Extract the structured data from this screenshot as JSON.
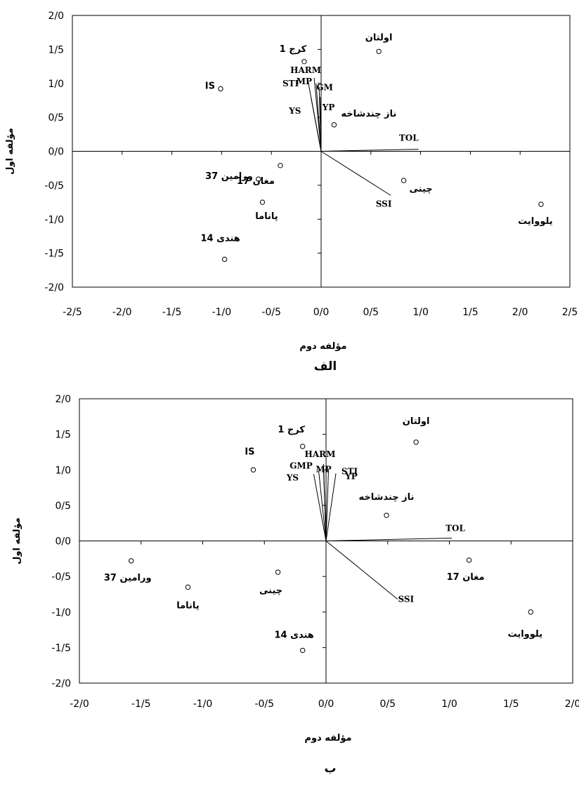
{
  "chart_data": [
    {
      "type": "scatter",
      "caption": "الف",
      "xlabel": "مؤلفه دوم",
      "ylabel": "مؤلفه اول",
      "xlim": [
        -2.5,
        2.5
      ],
      "ylim": [
        -2.0,
        2.0
      ],
      "xticks": [
        "-2/5",
        "-2/0",
        "-1/5",
        "-1/0",
        "-0/5",
        "0/0",
        "0/5",
        "1/0",
        "1/5",
        "2/0",
        "2/5"
      ],
      "yticks": [
        "-2/0",
        "-1/5",
        "-1/0",
        "-0/5",
        "0/0",
        "0/5",
        "1/0",
        "1/5",
        "2/0"
      ],
      "points": [
        {
          "label": "اولتان",
          "x": 0.58,
          "y": 1.47
        },
        {
          "label": "کرج 1",
          "x": -0.17,
          "y": 1.32
        },
        {
          "label": "IS",
          "x": -1.01,
          "y": 0.92
        },
        {
          "label": "ناز چندشاخه",
          "x": 0.13,
          "y": 0.39
        },
        {
          "label": "ورامین 37",
          "x": -0.63,
          "y": -0.41
        },
        {
          "label": "مغان 17",
          "x": -0.41,
          "y": -0.21
        },
        {
          "label": "چینی",
          "x": 0.83,
          "y": -0.43
        },
        {
          "label": "پاناما",
          "x": -0.59,
          "y": -0.75
        },
        {
          "label": "یلووایت",
          "x": 2.21,
          "y": -0.78
        },
        {
          "label": "هندی 14",
          "x": -0.97,
          "y": -1.59
        }
      ],
      "vectors": [
        {
          "label": "HARM",
          "x": -0.07,
          "y": 1.08
        },
        {
          "label": "MP",
          "x": -0.05,
          "y": 1.0
        },
        {
          "label": "GM",
          "x": -0.02,
          "y": 0.95
        },
        {
          "label": "YP",
          "x": -0.01,
          "y": 0.8
        },
        {
          "label": "STI",
          "x": -0.13,
          "y": 1.02
        },
        {
          "label": "YS",
          "x": -0.1,
          "y": 0.78
        },
        {
          "label": "TOL",
          "x": 0.98,
          "y": 0.03
        },
        {
          "label": "SSI",
          "x": 0.7,
          "y": -0.65
        }
      ]
    },
    {
      "type": "scatter",
      "caption": "ب",
      "xlabel": "مؤلفه دوم",
      "ylabel": "مؤلفه اول",
      "xlim": [
        -2.0,
        2.0
      ],
      "ylim": [
        -2.0,
        2.0
      ],
      "xticks": [
        "-2/0",
        "-1/5",
        "-1/0",
        "-0/5",
        "0/0",
        "0/5",
        "1/0",
        "1/5",
        "2/0"
      ],
      "yticks": [
        "-2/0",
        "-1/5",
        "-1/0",
        "-0/5",
        "0/0",
        "0/5",
        "1/0",
        "1/5",
        "2/0"
      ],
      "points": [
        {
          "label": "اولتان",
          "x": 0.73,
          "y": 1.39
        },
        {
          "label": "کرج 1",
          "x": -0.19,
          "y": 1.33
        },
        {
          "label": "IS",
          "x": -0.59,
          "y": 1.0
        },
        {
          "label": "ناز چندشاخه",
          "x": 0.49,
          "y": 0.36
        },
        {
          "label": "ورامین 37",
          "x": -1.58,
          "y": -0.28
        },
        {
          "label": "پاناما",
          "x": -1.12,
          "y": -0.65
        },
        {
          "label": "چینی",
          "x": -0.39,
          "y": -0.44
        },
        {
          "label": "مغان 17",
          "x": 1.16,
          "y": -0.27
        },
        {
          "label": "یلووایت",
          "x": 1.66,
          "y": -1.0
        },
        {
          "label": "هندی 14",
          "x": -0.19,
          "y": -1.54
        }
      ],
      "vectors": [
        {
          "label": "HARM",
          "x": -0.02,
          "y": 1.08
        },
        {
          "label": "MP",
          "x": -0.02,
          "y": 0.98
        },
        {
          "label": "STI",
          "x": 0.02,
          "y": 1.0
        },
        {
          "label": "GMP",
          "x": -0.06,
          "y": 0.99
        },
        {
          "label": "YS",
          "x": -0.1,
          "y": 0.94
        },
        {
          "label": "YP",
          "x": 0.08,
          "y": 0.95
        },
        {
          "label": "TOL",
          "x": 1.02,
          "y": 0.04
        },
        {
          "label": "SSI",
          "x": 0.58,
          "y": -0.82
        }
      ]
    }
  ]
}
